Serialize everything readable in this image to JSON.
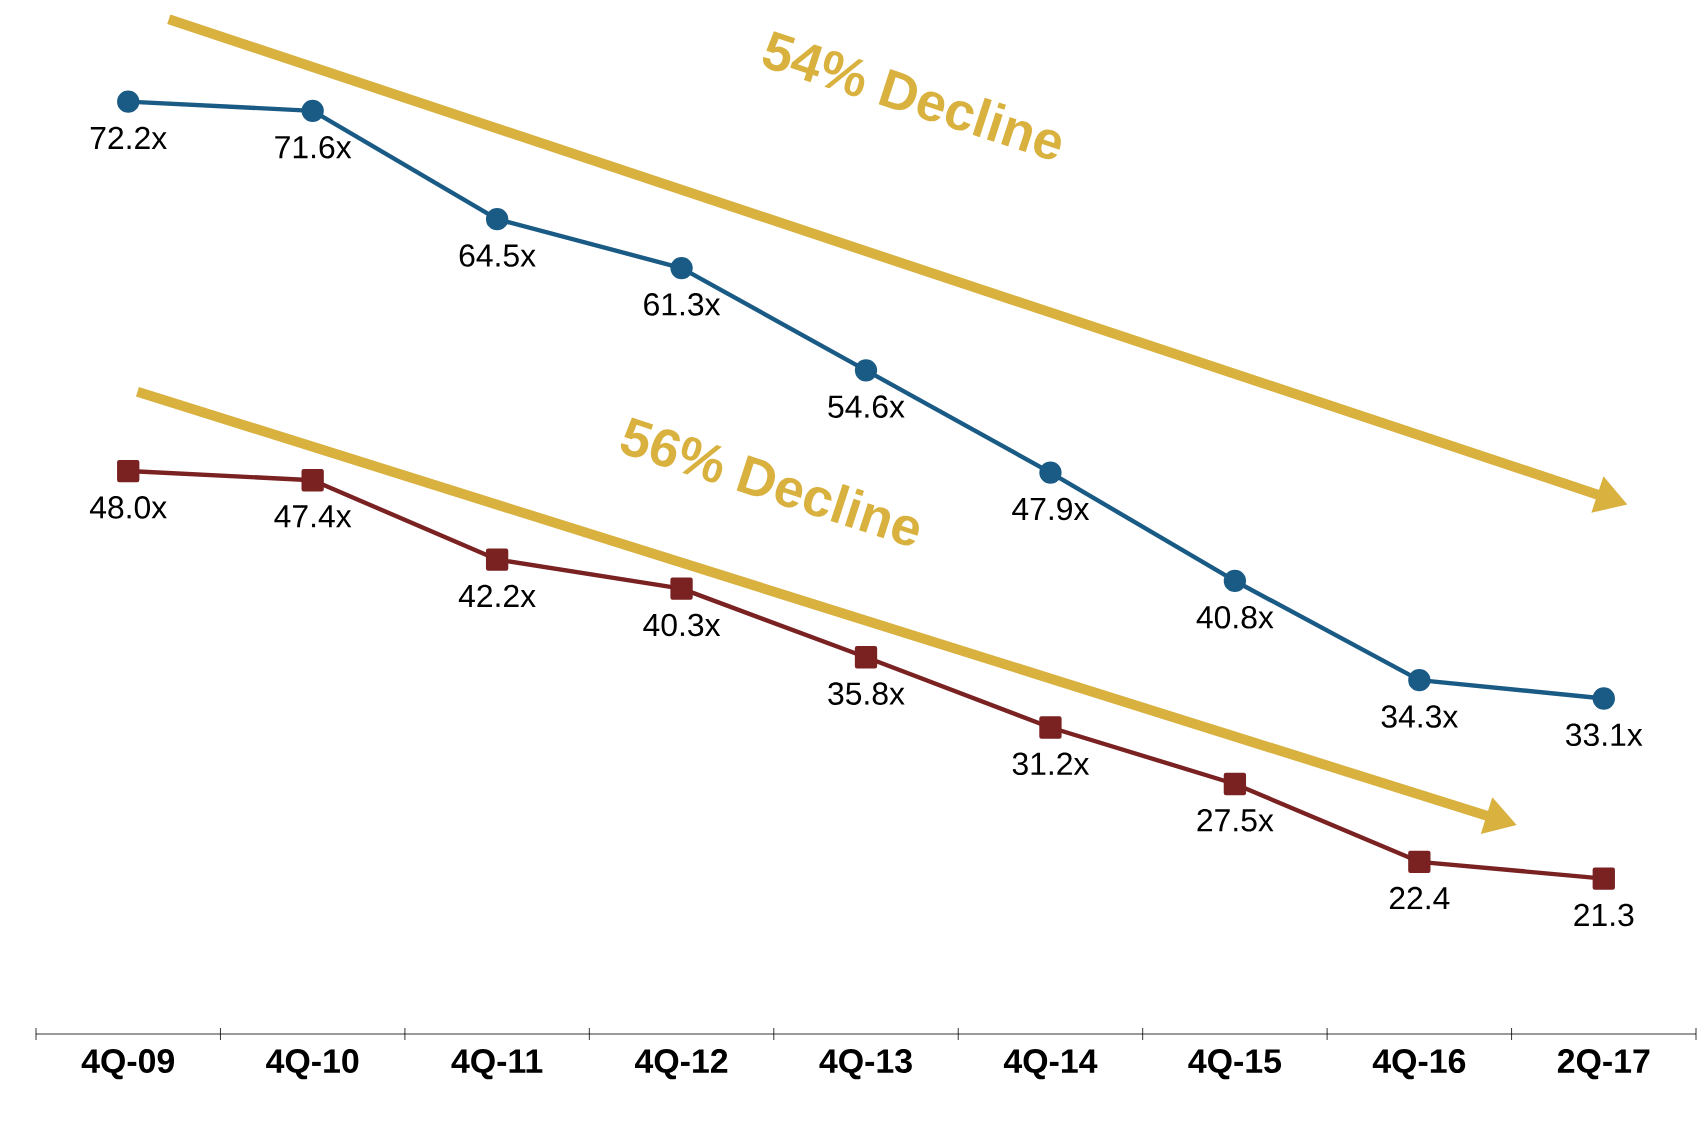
{
  "chart_data": {
    "type": "line",
    "categories": [
      "4Q-09",
      "4Q-10",
      "4Q-11",
      "4Q-12",
      "4Q-13",
      "4Q-14",
      "4Q-15",
      "4Q-16",
      "2Q-17"
    ],
    "series": [
      {
        "color": "#1a5b86",
        "marker": "circle",
        "values": [
          72.2,
          71.6,
          64.5,
          61.3,
          54.6,
          47.9,
          40.8,
          34.3,
          33.1
        ],
        "value_labels": [
          "72.2x",
          "71.6x",
          "64.5x",
          "61.3x",
          "54.6x",
          "47.9x",
          "40.8x",
          "34.3x",
          "33.1x"
        ]
      },
      {
        "color": "#7a2122",
        "marker": "square",
        "values": [
          48.0,
          47.4,
          42.2,
          40.3,
          35.8,
          31.2,
          27.5,
          22.4,
          21.3
        ],
        "value_labels": [
          "48.0x",
          "47.4x",
          "42.2x",
          "40.3x",
          "35.8x",
          "31.2x",
          "27.5x",
          "22.4",
          "21.3"
        ]
      }
    ],
    "annotations": [
      "54% Decline",
      "56% Decline"
    ],
    "grid": false,
    "tick_labels": "x"
  }
}
